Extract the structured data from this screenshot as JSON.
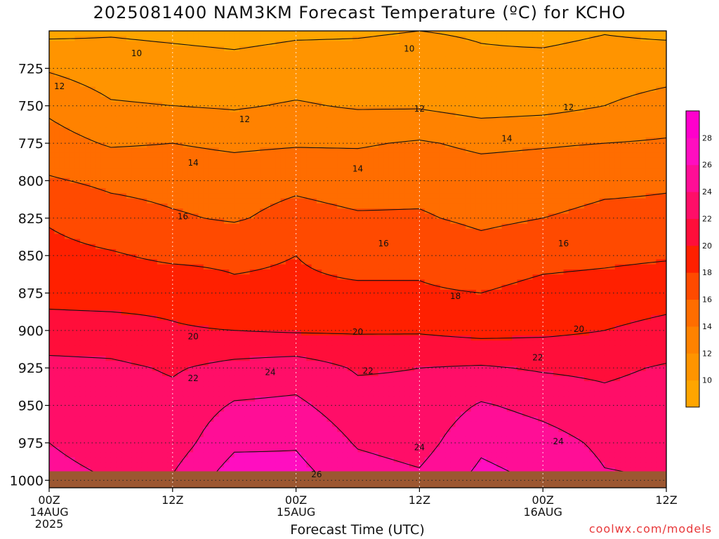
{
  "colors": {
    "ground": "#9c5731",
    "background": "#ffffff",
    "credit": "#e8383a",
    "scale": [
      {
        "lo": 8,
        "hi": 10,
        "color": "#ffa500"
      },
      {
        "lo": 10,
        "hi": 12,
        "color": "#ff9400"
      },
      {
        "lo": 12,
        "hi": 14,
        "color": "#ff8200"
      },
      {
        "lo": 14,
        "hi": 16,
        "color": "#ff6d00"
      },
      {
        "lo": 16,
        "hi": 18,
        "color": "#ff4a00"
      },
      {
        "lo": 18,
        "hi": 20,
        "color": "#ff2000"
      },
      {
        "lo": 20,
        "hi": 22,
        "color": "#ff0e3a"
      },
      {
        "lo": 22,
        "hi": 24,
        "color": "#ff0e68"
      },
      {
        "lo": 24,
        "hi": 26,
        "color": "#ff0e96"
      },
      {
        "lo": 26,
        "hi": 28,
        "color": "#ff0ec0"
      },
      {
        "lo": 28,
        "hi": 30,
        "color": "#ff00cc"
      }
    ]
  },
  "chart_data": {
    "type": "heatmap",
    "title": "2025081400 NAM3KM Forecast Temperature (ºC) for KCHO",
    "xlabel": "Forecast Time (UTC)",
    "ylabel": "",
    "credit": "coolwx.com/models",
    "x_ticks": [
      {
        "hour": 0,
        "line1": "00Z",
        "line2": "14AUG",
        "line3": "2025"
      },
      {
        "hour": 12,
        "line1": "12Z",
        "line2": "",
        "line3": ""
      },
      {
        "hour": 24,
        "line1": "00Z",
        "line2": "15AUG",
        "line3": ""
      },
      {
        "hour": 36,
        "line1": "12Z",
        "line2": "",
        "line3": ""
      },
      {
        "hour": 48,
        "line1": "00Z",
        "line2": "16AUG",
        "line3": ""
      },
      {
        "hour": 60,
        "line1": "12Z",
        "line2": "",
        "line3": ""
      }
    ],
    "xlim": [
      0,
      60
    ],
    "y_ticks": [
      725,
      750,
      775,
      800,
      825,
      850,
      875,
      900,
      925,
      950,
      975,
      1000
    ],
    "ylim": [
      1005,
      700
    ],
    "surface_pressure_hpa": 994,
    "colorbar_ticks": [
      10,
      12,
      14,
      16,
      18,
      20,
      22,
      24,
      26,
      28
    ],
    "levels_hpa": [
      700,
      725,
      750,
      775,
      800,
      825,
      850,
      875,
      900,
      925,
      950,
      975,
      1000
    ],
    "times_hours": [
      0,
      6,
      12,
      18,
      24,
      30,
      36,
      42,
      48,
      54,
      60
    ],
    "temperature_c": [
      [
        9.5,
        9.8,
        9.6,
        9.4,
        9.7,
        9.8,
        10.0,
        9.8,
        9.5,
        9.9,
        9.6
      ],
      [
        11.8,
        11.0,
        10.8,
        10.6,
        10.9,
        10.8,
        11.0,
        10.4,
        10.6,
        10.9,
        11.2
      ],
      [
        13.6,
        12.2,
        12.0,
        11.8,
        12.2,
        11.8,
        11.8,
        11.2,
        11.4,
        12.0,
        12.8
      ],
      [
        14.8,
        13.8,
        14.0,
        13.6,
        13.8,
        13.8,
        14.2,
        13.6,
        13.8,
        14.0,
        14.2
      ],
      [
        16.2,
        15.6,
        15.4,
        15.2,
        15.6,
        15.2,
        15.4,
        15.0,
        15.2,
        15.6,
        15.8
      ],
      [
        17.8,
        16.8,
        16.2,
        15.8,
        16.6,
        16.2,
        16.2,
        15.6,
        16.0,
        16.4,
        16.4
      ],
      [
        18.6,
        18.2,
        17.6,
        17.6,
        18.0,
        17.2,
        17.6,
        16.8,
        17.4,
        17.6,
        17.8
      ],
      [
        19.4,
        19.2,
        19.4,
        18.4,
        18.4,
        18.4,
        18.2,
        18.0,
        18.6,
        18.8,
        19.2
      ],
      [
        20.8,
        20.8,
        20.2,
        20.0,
        19.8,
        19.8,
        19.8,
        19.4,
        19.6,
        20.0,
        20.6
      ],
      [
        22.6,
        22.4,
        21.8,
        22.6,
        23.0,
        21.8,
        22.0,
        22.2,
        21.8,
        21.6,
        22.2
      ],
      [
        23.6,
        23.0,
        22.6,
        24.2,
        24.4,
        22.8,
        22.6,
        24.2,
        23.4,
        22.6,
        23.0
      ],
      [
        24.0,
        23.2,
        23.0,
        25.6,
        25.8,
        23.8,
        23.2,
        25.6,
        24.8,
        23.6,
        23.4
      ],
      [
        24.6,
        24.0,
        24.2,
        27.2,
        26.8,
        25.0,
        24.4,
        26.6,
        25.8,
        24.2,
        24.0
      ]
    ],
    "contour_labels": [
      {
        "text": "10",
        "hour": 8.5,
        "p": 715
      },
      {
        "text": "10",
        "hour": 35.0,
        "p": 712
      },
      {
        "text": "12",
        "hour": 1.0,
        "p": 737
      },
      {
        "text": "12",
        "hour": 19.0,
        "p": 759
      },
      {
        "text": "12",
        "hour": 36.0,
        "p": 752
      },
      {
        "text": "12",
        "hour": 50.5,
        "p": 751
      },
      {
        "text": "14",
        "hour": 14.0,
        "p": 788
      },
      {
        "text": "14",
        "hour": 30.0,
        "p": 792
      },
      {
        "text": "14",
        "hour": 44.5,
        "p": 772
      },
      {
        "text": "16",
        "hour": 13.0,
        "p": 824
      },
      {
        "text": "16",
        "hour": 32.5,
        "p": 842
      },
      {
        "text": "16",
        "hour": 50.0,
        "p": 842
      },
      {
        "text": "18",
        "hour": 39.5,
        "p": 877
      },
      {
        "text": "20",
        "hour": 14.0,
        "p": 904
      },
      {
        "text": "20",
        "hour": 30.0,
        "p": 901
      },
      {
        "text": "20",
        "hour": 51.5,
        "p": 899
      },
      {
        "text": "22",
        "hour": 14.0,
        "p": 932
      },
      {
        "text": "22",
        "hour": 31.0,
        "p": 927
      },
      {
        "text": "22",
        "hour": 47.5,
        "p": 918
      },
      {
        "text": "24",
        "hour": 21.5,
        "p": 928
      },
      {
        "text": "24",
        "hour": 36.0,
        "p": 978
      },
      {
        "text": "24",
        "hour": 49.5,
        "p": 974
      },
      {
        "text": "26",
        "hour": 26.0,
        "p": 996
      }
    ]
  }
}
